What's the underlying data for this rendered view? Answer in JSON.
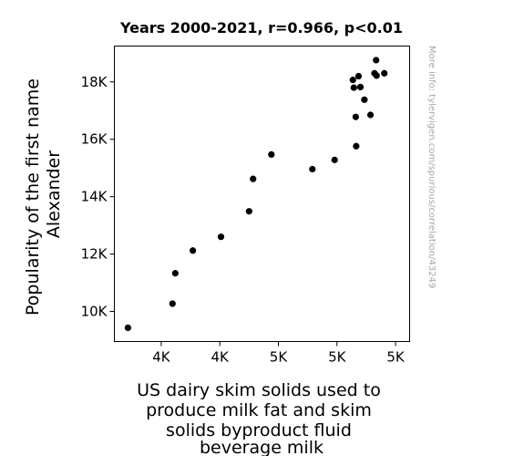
{
  "chart_data": {
    "type": "scatter",
    "title": "Years 2000-2021, r=0.966, p<0.01",
    "xlabel_lines": [
      "US dairy skim solids used to",
      "produce milk fat and skim",
      "solids byproduct fluid",
      "beverage milk"
    ],
    "ylabel_lines": [
      "Popularity of the first name",
      "Alexander"
    ],
    "watermark": "More info: tylervigen.com/spurious/correlation/43249",
    "xlim": [
      3850,
      5110
    ],
    "ylim": [
      8950,
      19250
    ],
    "x_ticks": [
      {
        "value": 4050,
        "label": "4K"
      },
      {
        "value": 4300,
        "label": "4K"
      },
      {
        "value": 4550,
        "label": "5K"
      },
      {
        "value": 4800,
        "label": "5K"
      },
      {
        "value": 5050,
        "label": "5K"
      }
    ],
    "y_ticks": [
      {
        "value": 10000,
        "label": "10K"
      },
      {
        "value": 12000,
        "label": "12K"
      },
      {
        "value": 14000,
        "label": "14K"
      },
      {
        "value": 16000,
        "label": "16K"
      },
      {
        "value": 18000,
        "label": "18K"
      }
    ],
    "points": [
      {
        "x": 3908,
        "y": 9430
      },
      {
        "x": 4098,
        "y": 10270
      },
      {
        "x": 4110,
        "y": 11330
      },
      {
        "x": 4185,
        "y": 12120
      },
      {
        "x": 4305,
        "y": 12600
      },
      {
        "x": 4425,
        "y": 13490
      },
      {
        "x": 4442,
        "y": 14620
      },
      {
        "x": 4520,
        "y": 15470
      },
      {
        "x": 4695,
        "y": 14960
      },
      {
        "x": 4790,
        "y": 15280
      },
      {
        "x": 4868,
        "y": 18070
      },
      {
        "x": 4872,
        "y": 17800
      },
      {
        "x": 4880,
        "y": 16780
      },
      {
        "x": 4882,
        "y": 15760
      },
      {
        "x": 4892,
        "y": 18200
      },
      {
        "x": 4900,
        "y": 17820
      },
      {
        "x": 4917,
        "y": 17380
      },
      {
        "x": 4943,
        "y": 16850
      },
      {
        "x": 4960,
        "y": 18300
      },
      {
        "x": 4967,
        "y": 18760
      },
      {
        "x": 4969,
        "y": 18220
      },
      {
        "x": 5002,
        "y": 18300
      }
    ]
  }
}
